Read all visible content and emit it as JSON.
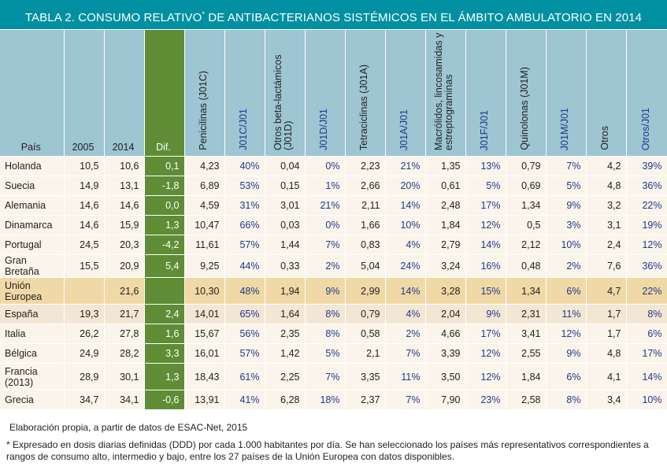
{
  "title": {
    "main": "TABLA 2. CONSUMO RELATIVO",
    "sup": "*",
    "rest": " DE ANTIBACTERIANOS SISTÉMICOS EN EL ÁMBITO AMBULATORIO EN 2014"
  },
  "headers": [
    "País",
    "2005",
    "2014",
    "Dif.",
    "Penicilinas (J01C)",
    "J01C/J01",
    "Otros beta-lactámicos (J01D)",
    "J01D/J01",
    "Tetraciclinas (J01A)",
    "J01A/J01",
    "Macrólidos, lincosamidas y estreptograminas",
    "J01F/J01",
    "Quinolonas (J01M)",
    "J01M/J01",
    "Otros",
    "Otros/J01"
  ],
  "rows": [
    [
      "Holanda",
      "10,5",
      "10,6",
      "0,1",
      "4,23",
      "40%",
      "0,04",
      "0%",
      "2,23",
      "21%",
      "1,35",
      "13%",
      "0,79",
      "7%",
      "4,2",
      "39%"
    ],
    [
      "Suecia",
      "14,9",
      "13,1",
      "-1,8",
      "6,89",
      "53%",
      "0,15",
      "1%",
      "2,66",
      "20%",
      "0,61",
      "5%",
      "0,69",
      "5%",
      "4,8",
      "36%"
    ],
    [
      "Alemania",
      "14,6",
      "14,6",
      "0,0",
      "4,59",
      "31%",
      "3,01",
      "21%",
      "2,11",
      "14%",
      "2,48",
      "17%",
      "1,34",
      "9%",
      "3,2",
      "22%"
    ],
    [
      "Dinamarca",
      "14,6",
      "15,9",
      "1,3",
      "10,47",
      "66%",
      "0,03",
      "0%",
      "1,66",
      "10%",
      "1,84",
      "12%",
      "0,5",
      "3%",
      "3,1",
      "19%"
    ],
    [
      "Portugal",
      "24,5",
      "20,3",
      "-4,2",
      "11,61",
      "57%",
      "1,44",
      "7%",
      "0,83",
      "4%",
      "2,79",
      "14%",
      "2,12",
      "10%",
      "2,4",
      "12%"
    ],
    [
      "Gran Bretaña",
      "15,5",
      "20,9",
      "5,4",
      "9,25",
      "44%",
      "0,33",
      "2%",
      "5,04",
      "24%",
      "3,24",
      "16%",
      "0,48",
      "2%",
      "7,6",
      "36%"
    ],
    [
      "Unión Europea",
      "",
      "21,6",
      "",
      "10,30",
      "48%",
      "1,94",
      "9%",
      "2,99",
      "14%",
      "3,28",
      "15%",
      "1,34",
      "6%",
      "4,7",
      "22%"
    ],
    [
      "España",
      "19,3",
      "21,7",
      "2,4",
      "14,01",
      "65%",
      "1,64",
      "8%",
      "0,79",
      "4%",
      "2,04",
      "9%",
      "2,31",
      "11%",
      "1,7",
      "8%"
    ],
    [
      "Italia",
      "26,2",
      "27,8",
      "1,6",
      "15,67",
      "56%",
      "2,35",
      "8%",
      "0,58",
      "2%",
      "4,66",
      "17%",
      "3,41",
      "12%",
      "1,7",
      "6%"
    ],
    [
      "Bélgica",
      "24,9",
      "28,2",
      "3,3",
      "16,01",
      "57%",
      "1,42",
      "5%",
      "2,1",
      "7%",
      "3,39",
      "12%",
      "2,55",
      "9%",
      "4,8",
      "17%"
    ],
    [
      "Francia (2013)",
      "28,9",
      "30,1",
      "1,3",
      "18,43",
      "61%",
      "2,25",
      "7%",
      "3,35",
      "11%",
      "3,50",
      "12%",
      "1,84",
      "6%",
      "4,1",
      "14%"
    ],
    [
      "Grecia",
      "34,7",
      "34,1",
      "-0,6",
      "13,91",
      "41%",
      "6,28",
      "18%",
      "2,37",
      "7%",
      "7,90",
      "23%",
      "2,58",
      "8%",
      "3,4",
      "10%"
    ]
  ],
  "source": "Elaboración propia, a partir de datos de ESAC-Net, 2015",
  "note": "* Expresado en dosis diarias definidas (DDD) por cada 1.000 habitantes por día. Se han seleccionado los países más representativos correspondientes a rangos de consumo alto, intermedio y bajo, entre los 27 países de la Unión Europea con datos disponibles.",
  "colors": {
    "title_bg": "#0090a2",
    "header_bg": "#9dc5d2",
    "dif_bg": "#5f8c35",
    "row_bg": "#faf4ea",
    "eu_row_bg": "#f0d9a6",
    "spain_row_bg": "#f3e7d4",
    "ratio_text": "#1d3a8f"
  }
}
